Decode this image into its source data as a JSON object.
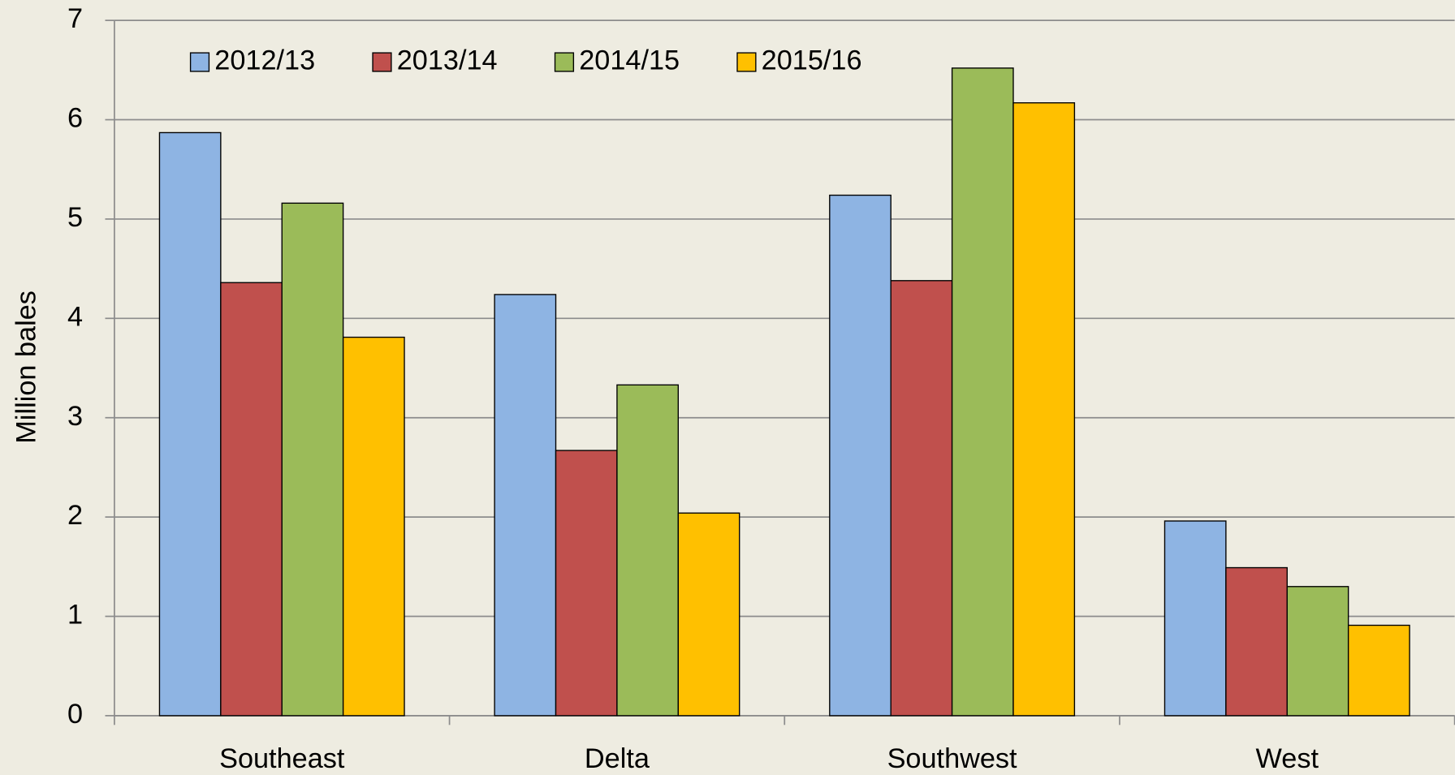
{
  "chart_data": {
    "type": "bar",
    "ylabel": "Million bales",
    "categories": [
      "Southeast",
      "Delta",
      "Southwest",
      "West"
    ],
    "series": [
      {
        "name": "2012/13",
        "color": "#8eb4e3",
        "values": [
          5.87,
          4.24,
          5.24,
          1.96
        ]
      },
      {
        "name": "2013/14",
        "color": "#c0504d",
        "values": [
          4.36,
          2.67,
          4.38,
          1.49
        ]
      },
      {
        "name": "2014/15",
        "color": "#9bbb59",
        "values": [
          5.16,
          3.33,
          6.52,
          1.3
        ]
      },
      {
        "name": "2015/16",
        "color": "#ffc000",
        "values": [
          3.81,
          2.04,
          6.17,
          0.91
        ]
      }
    ],
    "ylim": [
      0,
      7
    ],
    "yticks": [
      0,
      1,
      2,
      3,
      4,
      5,
      6,
      7
    ],
    "grid": true,
    "legend": "top-left"
  }
}
